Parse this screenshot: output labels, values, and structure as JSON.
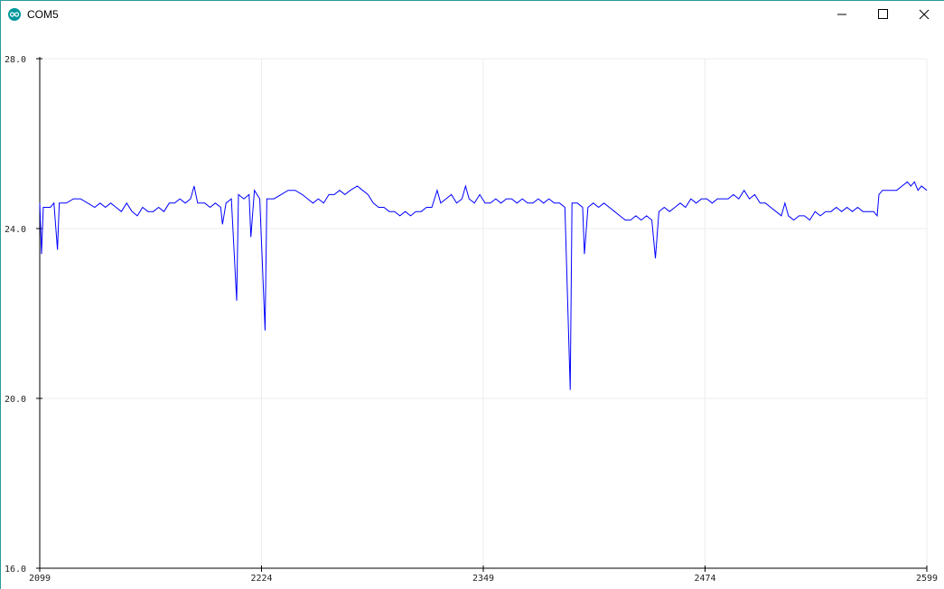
{
  "window_title": "COM5",
  "chart_data": {
    "type": "line",
    "x": [
      2099,
      2100,
      2101,
      2105,
      2107,
      2109,
      2110,
      2114,
      2118,
      2122,
      2126,
      2130,
      2133,
      2136,
      2139,
      2142,
      2145,
      2148,
      2151,
      2154,
      2157,
      2160,
      2163,
      2166,
      2169,
      2172,
      2175,
      2178,
      2181,
      2184,
      2186,
      2188,
      2192,
      2195,
      2198,
      2201,
      2202,
      2204,
      2207,
      2210,
      2211,
      2214,
      2217,
      2218,
      2220,
      2223,
      2226,
      2227,
      2231,
      2235,
      2239,
      2243,
      2247,
      2250,
      2253,
      2256,
      2259,
      2262,
      2265,
      2268,
      2271,
      2274,
      2278,
      2281,
      2284,
      2287,
      2290,
      2293,
      2296,
      2299,
      2302,
      2305,
      2308,
      2311,
      2314,
      2317,
      2320,
      2323,
      2325,
      2328,
      2331,
      2334,
      2337,
      2339,
      2341,
      2344,
      2347,
      2350,
      2353,
      2356,
      2359,
      2362,
      2365,
      2368,
      2371,
      2374,
      2377,
      2380,
      2383,
      2386,
      2389,
      2392,
      2395,
      2398,
      2399,
      2402,
      2405,
      2406,
      2408,
      2411,
      2414,
      2417,
      2420,
      2423,
      2426,
      2429,
      2432,
      2435,
      2438,
      2441,
      2444,
      2446,
      2448,
      2451,
      2454,
      2457,
      2460,
      2463,
      2466,
      2469,
      2472,
      2475,
      2478,
      2481,
      2484,
      2487,
      2490,
      2493,
      2496,
      2499,
      2502,
      2505,
      2508,
      2511,
      2514,
      2517,
      2519,
      2521,
      2524,
      2527,
      2530,
      2533,
      2536,
      2539,
      2542,
      2545,
      2548,
      2551,
      2554,
      2557,
      2560,
      2563,
      2566,
      2569,
      2571,
      2572,
      2574,
      2578,
      2582,
      2585,
      2588,
      2590,
      2592,
      2594,
      2596,
      2599
    ],
    "values": [
      24.6,
      23.4,
      24.5,
      24.5,
      24.6,
      23.5,
      24.6,
      24.6,
      24.7,
      24.7,
      24.6,
      24.5,
      24.6,
      24.5,
      24.6,
      24.5,
      24.4,
      24.6,
      24.4,
      24.3,
      24.5,
      24.4,
      24.4,
      24.5,
      24.4,
      24.6,
      24.6,
      24.7,
      24.6,
      24.7,
      25.0,
      24.6,
      24.6,
      24.5,
      24.6,
      24.5,
      24.1,
      24.6,
      24.7,
      22.3,
      24.8,
      24.7,
      24.8,
      23.8,
      24.9,
      24.7,
      21.6,
      24.7,
      24.7,
      24.8,
      24.9,
      24.9,
      24.8,
      24.7,
      24.6,
      24.7,
      24.6,
      24.8,
      24.8,
      24.9,
      24.8,
      24.9,
      25.0,
      24.9,
      24.8,
      24.6,
      24.5,
      24.5,
      24.4,
      24.4,
      24.3,
      24.4,
      24.3,
      24.4,
      24.4,
      24.5,
      24.5,
      24.9,
      24.6,
      24.7,
      24.8,
      24.6,
      24.7,
      25.0,
      24.7,
      24.6,
      24.8,
      24.6,
      24.6,
      24.7,
      24.6,
      24.7,
      24.7,
      24.6,
      24.7,
      24.6,
      24.6,
      24.7,
      24.6,
      24.7,
      24.6,
      24.6,
      24.5,
      20.2,
      24.6,
      24.6,
      24.5,
      23.4,
      24.5,
      24.6,
      24.5,
      24.6,
      24.5,
      24.4,
      24.3,
      24.2,
      24.2,
      24.3,
      24.2,
      24.3,
      24.2,
      23.3,
      24.4,
      24.5,
      24.4,
      24.5,
      24.6,
      24.5,
      24.7,
      24.6,
      24.7,
      24.7,
      24.6,
      24.7,
      24.7,
      24.7,
      24.8,
      24.7,
      24.9,
      24.7,
      24.8,
      24.6,
      24.6,
      24.5,
      24.4,
      24.3,
      24.6,
      24.3,
      24.2,
      24.3,
      24.3,
      24.2,
      24.4,
      24.3,
      24.4,
      24.4,
      24.5,
      24.4,
      24.5,
      24.4,
      24.5,
      24.4,
      24.4,
      24.4,
      24.3,
      24.8,
      24.9,
      24.9,
      24.9,
      25.0,
      25.1,
      25.0,
      25.1,
      24.9,
      25.0,
      24.9
    ],
    "color": "#0000ff",
    "xlim": [
      2099,
      2599
    ],
    "xticks": [
      2099,
      2224,
      2349,
      2474,
      2599
    ],
    "ylim": [
      16,
      28
    ],
    "yticks": [
      {
        "value": 16,
        "label": "16.0"
      },
      {
        "value": 20,
        "label": "20.0"
      },
      {
        "value": 24,
        "label": "24.0"
      },
      {
        "value": 28,
        "label": "28.0"
      }
    ],
    "grid": true
  }
}
